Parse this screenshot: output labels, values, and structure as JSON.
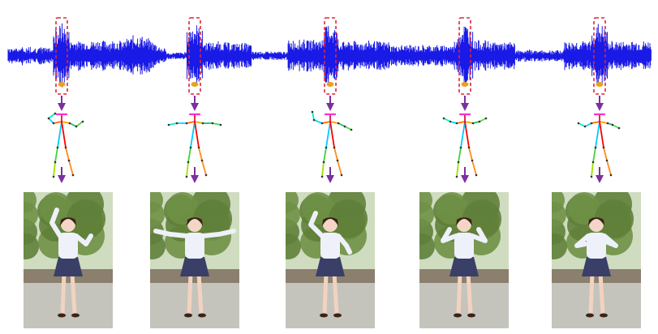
{
  "colors": {
    "waveform": "#1a1ae6",
    "beat_box": "#e0253a",
    "beat_marker": "#e8a21a",
    "arrow": "#7b2fa0",
    "skeleton_head": "#ff2fd0",
    "photo_foliage": "#5f7f3a",
    "photo_ground": "#c4c4bc",
    "shirt": "#eef0fa",
    "skirt": "#3a3f68"
  },
  "beats": [
    {
      "id": 1,
      "pose": "left-arm-raised-up",
      "arms": "up-left"
    },
    {
      "id": 2,
      "pose": "arms-spread-wide",
      "arms": "wide"
    },
    {
      "id": 3,
      "pose": "arm-raised-over-head",
      "arms": "overhead"
    },
    {
      "id": 4,
      "pose": "hands-near-shoulders",
      "arms": "shoulders"
    },
    {
      "id": 5,
      "pose": "hands-near-chest",
      "arms": "chest"
    }
  ]
}
